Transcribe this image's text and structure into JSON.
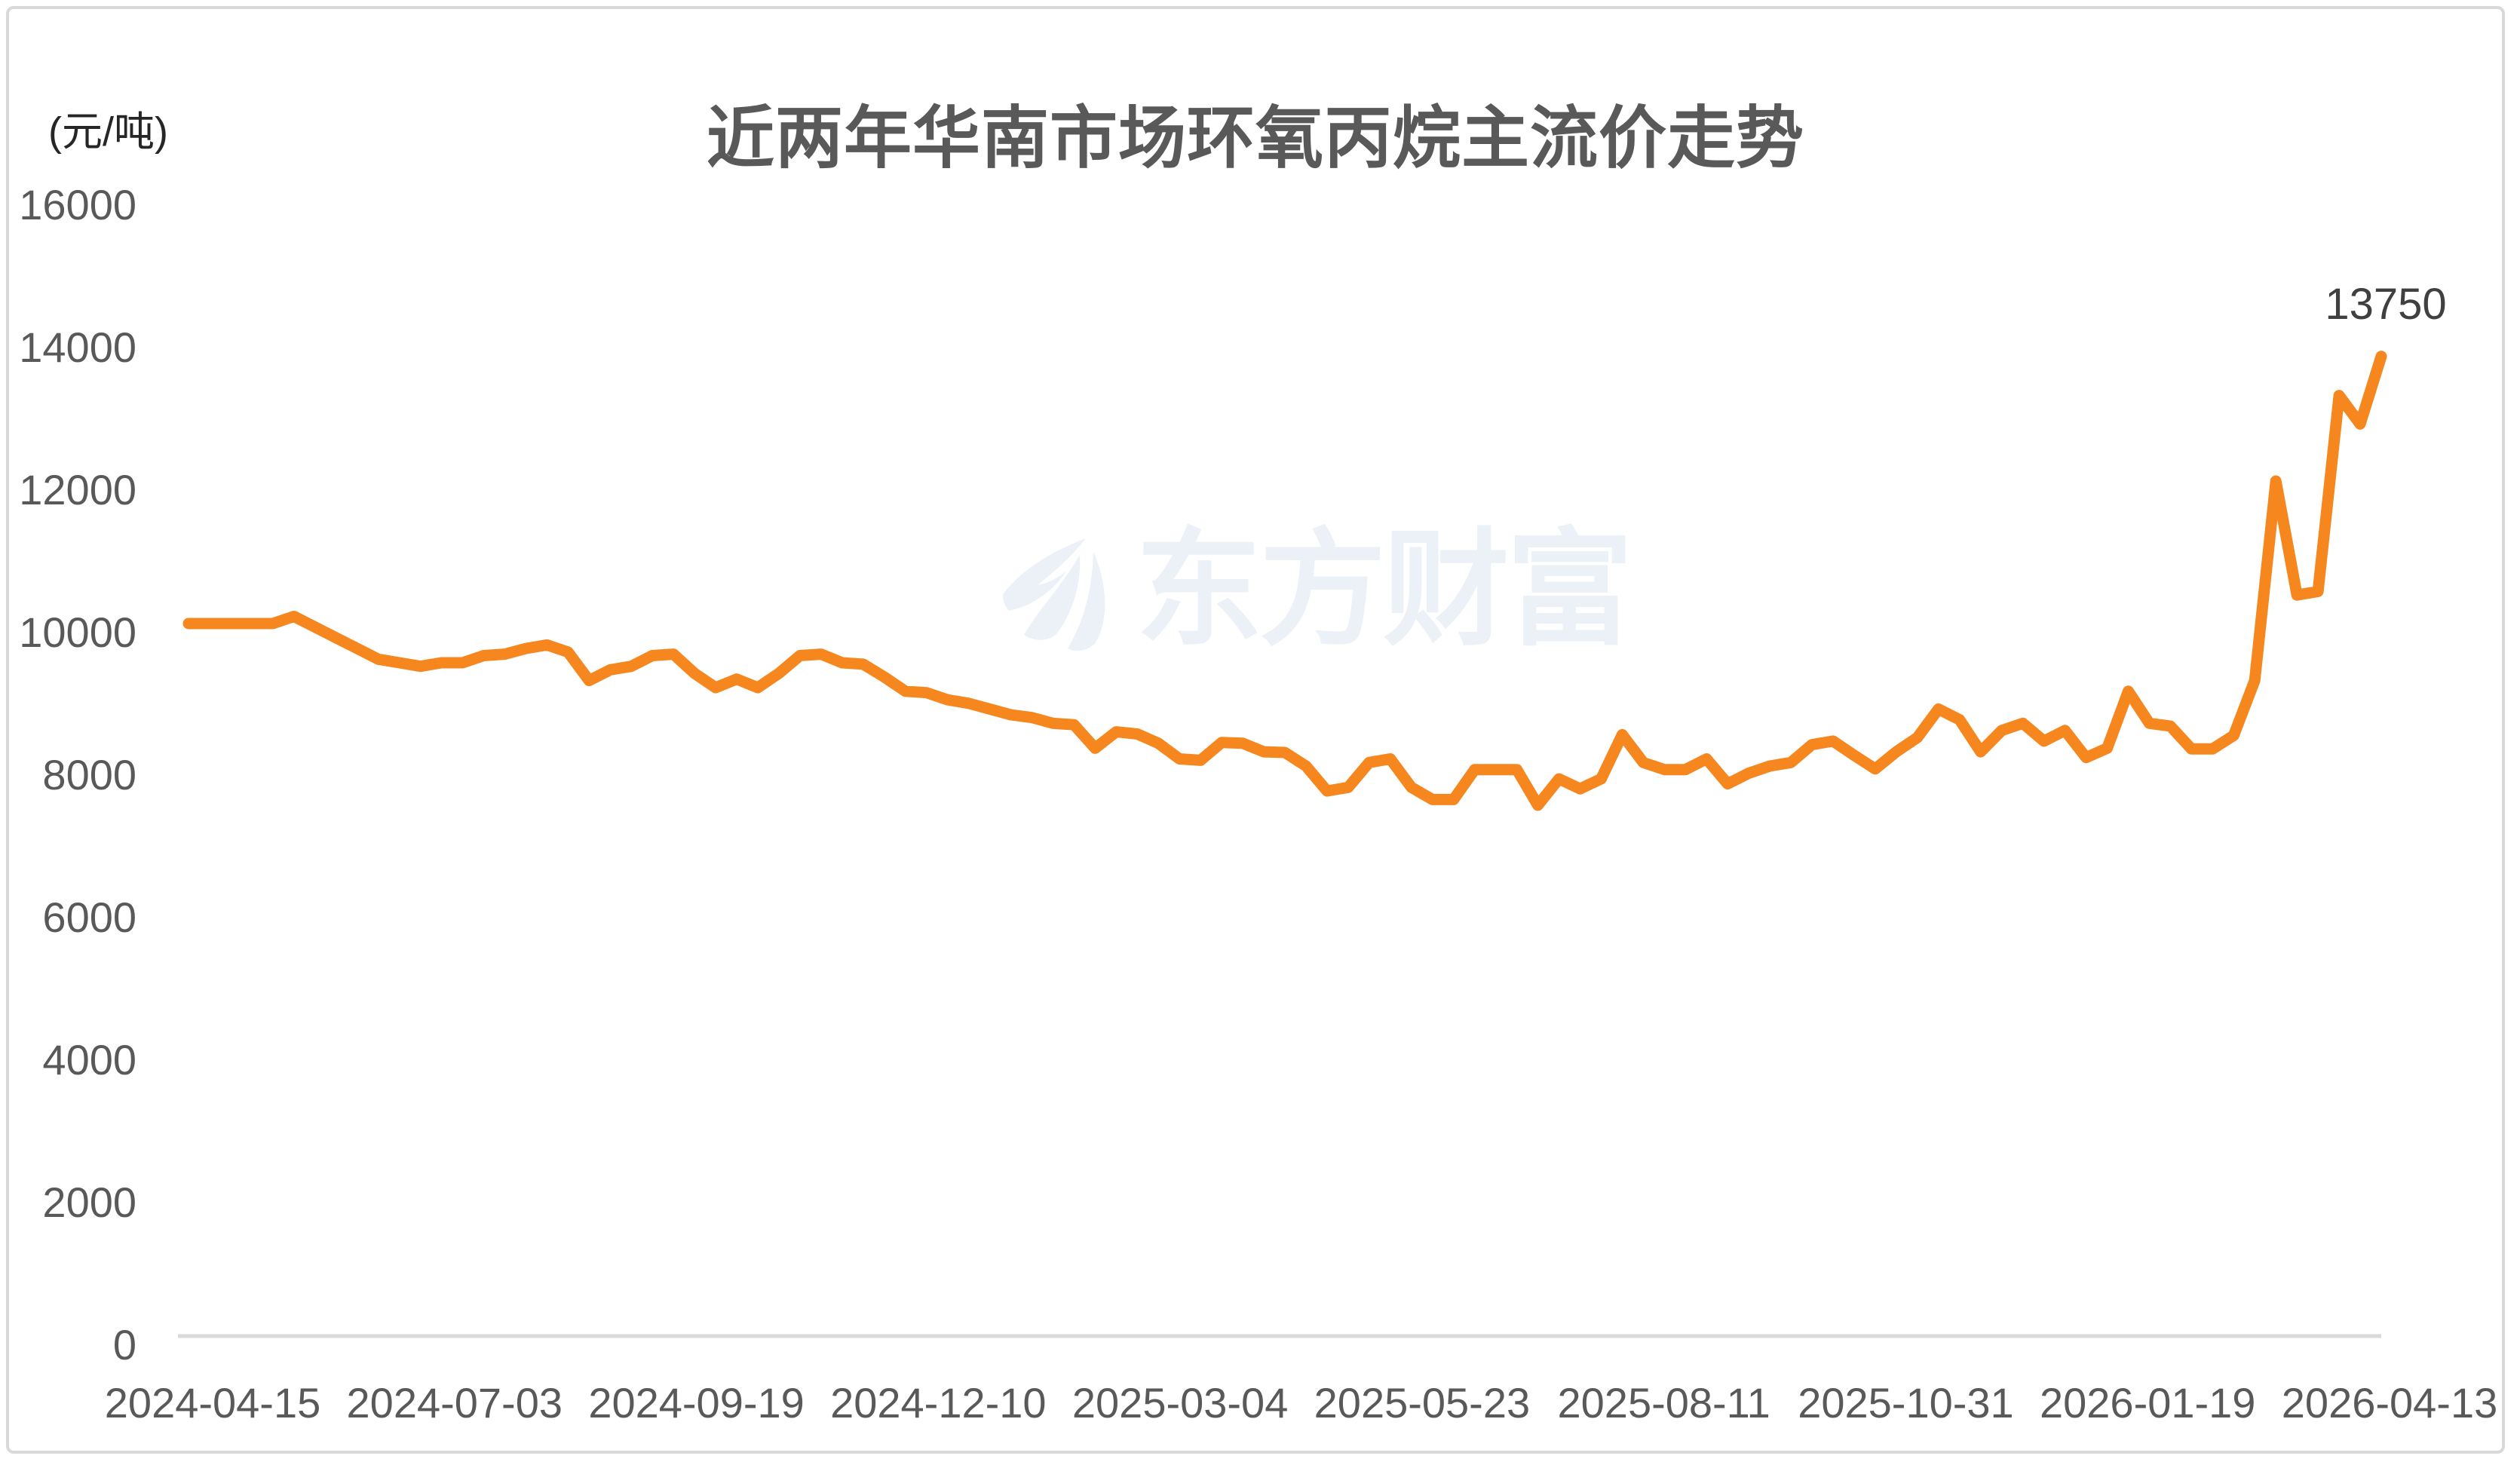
{
  "page": {
    "background": "#FFFFFF",
    "frame_border_color": "#D9D9D9"
  },
  "chart_data": {
    "type": "line",
    "title": "近两年华南市场环氧丙烷主流价走势",
    "unit_label": "(元/吨)",
    "watermark": "东方财富",
    "last_point_label": "13750",
    "grid": false,
    "legend": "none",
    "line_color": "#F6871F",
    "tick_label_color": "#595959",
    "title_color": "#595959",
    "unit_label_color": "#262626",
    "data_label_color": "#404040",
    "axis_line_color": "#D9D9D9",
    "watermark_color": "#ECF1F8",
    "ylim": [
      0,
      16000
    ],
    "y_ticks": [
      16000,
      14000,
      12000,
      10000,
      8000,
      6000,
      4000,
      2000,
      0
    ],
    "x_tick_labels": [
      "2024-04-15",
      "2024-07-03",
      "2024-09-19",
      "2024-12-10",
      "2025-03-04",
      "2025-05-23",
      "2025-08-11",
      "2025-10-31",
      "2026-01-19",
      "2026-04-13"
    ],
    "series": [
      {
        "name": "华南市场环氧丙烷主流价",
        "values": [
          10000,
          10000,
          10000,
          10000,
          10000,
          10100,
          9950,
          9800,
          9650,
          9500,
          9450,
          9400,
          9450,
          9450,
          9550,
          9570,
          9650,
          9700,
          9600,
          9200,
          9350,
          9400,
          9550,
          9570,
          9300,
          9100,
          9220,
          9100,
          9300,
          9550,
          9570,
          9450,
          9430,
          9250,
          9050,
          9030,
          8930,
          8880,
          8800,
          8720,
          8680,
          8600,
          8580,
          8250,
          8480,
          8450,
          8320,
          8100,
          8080,
          8330,
          8320,
          8200,
          8190,
          8000,
          7650,
          7700,
          8050,
          8100,
          7700,
          7530,
          7530,
          7950,
          7950,
          7950,
          7450,
          7820,
          7680,
          7820,
          8440,
          8050,
          7950,
          7950,
          8100,
          7750,
          7900,
          8000,
          8050,
          8300,
          8350,
          8150,
          7960,
          8200,
          8400,
          8800,
          8650,
          8200,
          8500,
          8600,
          8350,
          8500,
          8120,
          8250,
          9050,
          8600,
          8560,
          8240,
          8240,
          8430,
          9200,
          12000,
          10400,
          10450,
          13200,
          12800,
          13750
        ]
      }
    ]
  }
}
